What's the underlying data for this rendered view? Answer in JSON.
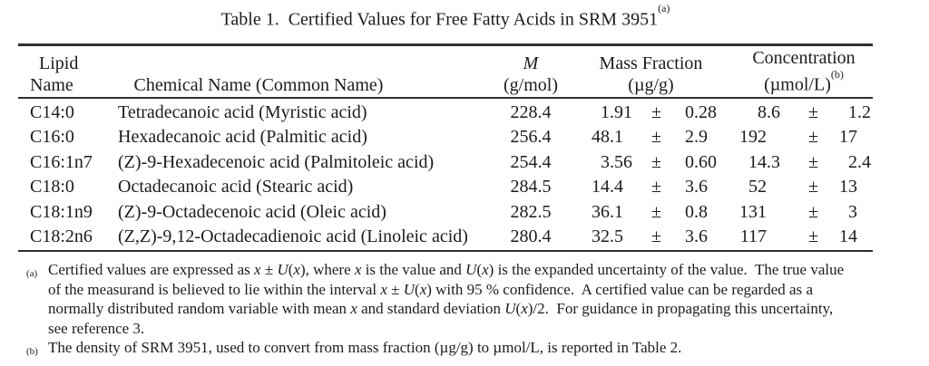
{
  "title": {
    "text": "Table 1.  Certified Values for Free Fatty Acids in SRM 3951",
    "sup": "(a)"
  },
  "table": {
    "plus_minus": "±",
    "headers": {
      "lipid_line1": "Lipid",
      "lipid_line2": "Name",
      "chemical": "Chemical Name (Common Name)",
      "molar_mass_symbol": "M",
      "molar_mass_unit": "(g/mol)",
      "mass_fraction_label": "Mass Fraction",
      "mass_fraction_unit": "(µg/g)",
      "concentration_label": "Concentration",
      "concentration_unit": "(µmol/L)",
      "concentration_sup": "(b)"
    },
    "rows": [
      {
        "lipid": "C14:0",
        "chemical": "Tetradecanoic acid (Myristic acid)",
        "m": "228.4",
        "mf": "1.91",
        "mf_u": "0.28",
        "c": "8.6",
        "c_u": "1.2"
      },
      {
        "lipid": "C16:0",
        "chemical": "Hexadecanoic acid (Palmitic acid)",
        "m": "256.4",
        "mf": "48.1",
        "mf_u": "2.9",
        "c": "192",
        "c_u": "17"
      },
      {
        "lipid": "C16:1n7",
        "chemical": "(Z)-9-Hexadecenoic acid (Palmitoleic acid)",
        "m": "254.4",
        "mf": "3.56",
        "mf_u": "0.60",
        "c": "14.3",
        "c_u": "2.4"
      },
      {
        "lipid": "C18:0",
        "chemical": "Octadecanoic acid (Stearic acid)",
        "m": "284.5",
        "mf": "14.4",
        "mf_u": "3.6",
        "c": "52",
        "c_u": "13"
      },
      {
        "lipid": "C18:1n9",
        "chemical": "(Z)-9-Octadecenoic acid (Oleic acid)",
        "m": "282.5",
        "mf": "36.1",
        "mf_u": "0.8",
        "c": "131",
        "c_u": "3"
      },
      {
        "lipid": "C18:2n6",
        "chemical": "(Z,Z)-9,12-Octadecadienoic acid (Linoleic acid)",
        "m": "280.4",
        "mf": "32.5",
        "mf_u": "3.6",
        "c": "117",
        "c_u": "14"
      }
    ]
  },
  "footnotes": [
    {
      "label": "(a)",
      "lines": [
        [
          {
            "t": "Certified values are expressed as "
          },
          {
            "t": "x",
            "i": true
          },
          {
            "t": " ± "
          },
          {
            "t": "U",
            "i": true
          },
          {
            "t": "("
          },
          {
            "t": "x",
            "i": true
          },
          {
            "t": "), where "
          },
          {
            "t": "x",
            "i": true
          },
          {
            "t": " is the value and "
          },
          {
            "t": "U",
            "i": true
          },
          {
            "t": "("
          },
          {
            "t": "x",
            "i": true
          },
          {
            "t": ") is the expanded uncertainty of the value.  The true value"
          }
        ],
        [
          {
            "t": "of the measurand is believed to lie within the interval "
          },
          {
            "t": "x",
            "i": true
          },
          {
            "t": " ± "
          },
          {
            "t": "U",
            "i": true
          },
          {
            "t": "("
          },
          {
            "t": "x",
            "i": true
          },
          {
            "t": ") with 95 % confidence.  A certified value can be regarded as a"
          }
        ],
        [
          {
            "t": "normally distributed random variable with mean "
          },
          {
            "t": "x",
            "i": true
          },
          {
            "t": " and standard deviation "
          },
          {
            "t": "U",
            "i": true
          },
          {
            "t": "("
          },
          {
            "t": "x",
            "i": true
          },
          {
            "t": ")/2.  For guidance in propagating this uncertainty,"
          }
        ],
        [
          {
            "t": "see reference 3."
          }
        ]
      ]
    },
    {
      "label": "(b)",
      "lines": [
        [
          {
            "t": "The density of SRM 3951, used to convert from mass fraction (µg/g) to µmol/L, is reported in Table 2."
          }
        ]
      ]
    }
  ]
}
